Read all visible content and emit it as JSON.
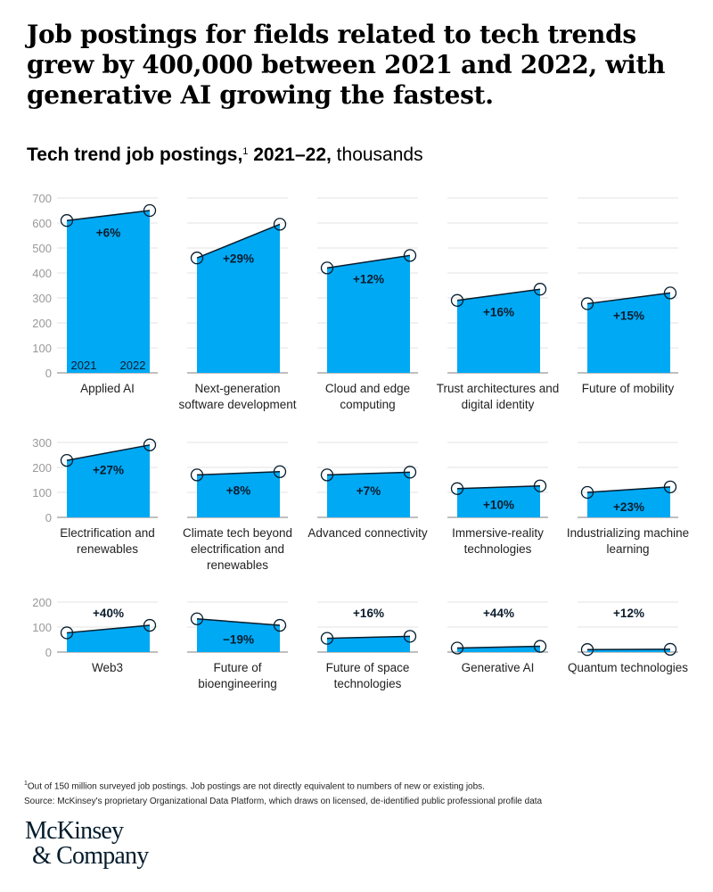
{
  "title": "Job postings for fields related to tech trends grew by 400,000 between 2021 and 2022, with generative AI growing the fastest.",
  "subtitle": {
    "bold": "Tech trend job postings,",
    "footnote_mark": "1",
    "bold2": " 2021–22,",
    "unit": " thousands"
  },
  "footnote": {
    "mark": "1",
    "note": "Out of 150 million surveyed job postings. Job postings are not directly equivalent to numbers of new or existing jobs.",
    "source": "Source: McKinsey's proprietary Organizational Data Platform, which draws on licensed, de-identified public professional profile data"
  },
  "logo": {
    "line1": "McKinsey",
    "line2": "& Company"
  },
  "colors": {
    "area": "#00a9f4",
    "line": "#051c2c",
    "grid": "#e3e3e3",
    "axis": "#aaaaaa",
    "tick": "#999999"
  },
  "chart_data": {
    "type": "area",
    "layout": "small-multiples",
    "x": [
      "2021",
      "2022"
    ],
    "x_labels_shown_in_first_panel": [
      "2021",
      "2022"
    ],
    "unit": "thousands",
    "rows": [
      {
        "ylim": [
          0,
          700
        ],
        "yticks": [
          0,
          100,
          200,
          300,
          400,
          500,
          600,
          700
        ],
        "label_position": "inside"
      },
      {
        "ylim": [
          0,
          300
        ],
        "yticks": [
          0,
          100,
          200,
          300
        ],
        "label_position": "inside"
      },
      {
        "ylim": [
          0,
          200
        ],
        "yticks": [
          0,
          100,
          200
        ],
        "label_position": "above"
      }
    ],
    "panels": [
      {
        "name": "Applied AI",
        "row": 0,
        "values": [
          610,
          650
        ],
        "change": "+6%"
      },
      {
        "name": "Next-generation software development",
        "row": 0,
        "values": [
          460,
          595
        ],
        "change": "+29%"
      },
      {
        "name": "Cloud and edge computing",
        "row": 0,
        "values": [
          420,
          470
        ],
        "change": "+12%"
      },
      {
        "name": "Trust architectures and digital identity",
        "row": 0,
        "values": [
          290,
          335
        ],
        "change": "+16%"
      },
      {
        "name": "Future of mobility",
        "row": 0,
        "values": [
          277,
          320
        ],
        "change": "+15%"
      },
      {
        "name": "Electrification and renewables",
        "row": 1,
        "values": [
          228,
          290
        ],
        "change": "+27%"
      },
      {
        "name": "Climate tech beyond electrification and renewables",
        "row": 1,
        "values": [
          170,
          183
        ],
        "change": "+8%"
      },
      {
        "name": "Advanced connectivity",
        "row": 1,
        "values": [
          170,
          181
        ],
        "change": "+7%"
      },
      {
        "name": "Immersive-reality technologies",
        "row": 1,
        "values": [
          115,
          126
        ],
        "change": "+10%"
      },
      {
        "name": "Industrializing machine learning",
        "row": 1,
        "values": [
          100,
          122
        ],
        "change": "+23%"
      },
      {
        "name": "Web3",
        "row": 2,
        "values": [
          77,
          107
        ],
        "change": "+40%"
      },
      {
        "name": "Future of bioengineering",
        "row": 2,
        "values": [
          133,
          107
        ],
        "change": "−19%",
        "label_position": "inside"
      },
      {
        "name": "Future of space technologies",
        "row": 2,
        "values": [
          55,
          63
        ],
        "change": "+16%"
      },
      {
        "name": "Generative AI",
        "row": 2,
        "values": [
          16,
          23
        ],
        "change": "+44%"
      },
      {
        "name": "Quantum technologies",
        "row": 2,
        "values": [
          10,
          11
        ],
        "change": "+12%"
      }
    ]
  }
}
